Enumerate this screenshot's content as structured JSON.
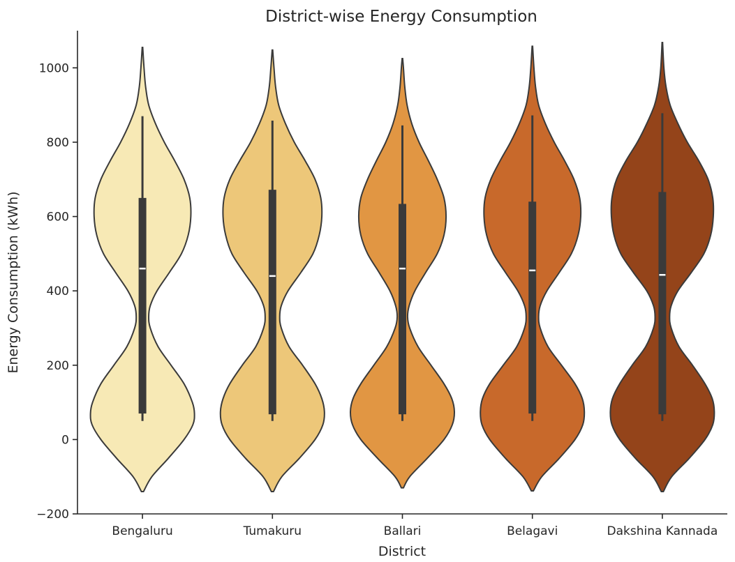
{
  "chart_data": {
    "type": "violin",
    "title": "District-wise Energy Consumption",
    "xlabel": "District",
    "ylabel": "Energy Consumption (kWh)",
    "ylim": [
      -200,
      1100
    ],
    "yticks": [
      -200,
      0,
      200,
      400,
      600,
      800,
      1000
    ],
    "ytick_labels": [
      "−200",
      "0",
      "200",
      "400",
      "600",
      "800",
      "1000"
    ],
    "grid": false,
    "categories": [
      "Bengaluru",
      "Tumakuru",
      "Ballari",
      "Belagavi",
      "Dakshina Kannada"
    ],
    "colors": [
      "#f7e9b5",
      "#edc779",
      "#e19643",
      "#c8692b",
      "#94441a"
    ],
    "series": [
      {
        "category": "Bengaluru",
        "min": 50,
        "q1": 70,
        "median": 460,
        "q3": 650,
        "max": 870,
        "kde_range": [
          -140,
          1055
        ],
        "density": [
          [
            -140,
            0.02
          ],
          [
            -100,
            0.18
          ],
          [
            -50,
            0.5
          ],
          [
            0,
            0.8
          ],
          [
            40,
            0.97
          ],
          [
            70,
            1.0
          ],
          [
            100,
            0.96
          ],
          [
            150,
            0.8
          ],
          [
            200,
            0.55
          ],
          [
            250,
            0.3
          ],
          [
            300,
            0.15
          ],
          [
            330,
            0.12
          ],
          [
            360,
            0.15
          ],
          [
            400,
            0.28
          ],
          [
            450,
            0.52
          ],
          [
            500,
            0.75
          ],
          [
            550,
            0.88
          ],
          [
            600,
            0.93
          ],
          [
            650,
            0.91
          ],
          [
            700,
            0.8
          ],
          [
            750,
            0.62
          ],
          [
            800,
            0.42
          ],
          [
            850,
            0.25
          ],
          [
            900,
            0.12
          ],
          [
            950,
            0.06
          ],
          [
            1000,
            0.03
          ],
          [
            1055,
            0.005
          ]
        ]
      },
      {
        "category": "Tumakuru",
        "min": 50,
        "q1": 68,
        "median": 440,
        "q3": 672,
        "max": 858,
        "kde_range": [
          -140,
          1048
        ],
        "density": [
          [
            -140,
            0.02
          ],
          [
            -100,
            0.18
          ],
          [
            -50,
            0.52
          ],
          [
            0,
            0.82
          ],
          [
            40,
            0.97
          ],
          [
            75,
            1.0
          ],
          [
            110,
            0.95
          ],
          [
            150,
            0.82
          ],
          [
            200,
            0.58
          ],
          [
            250,
            0.32
          ],
          [
            300,
            0.17
          ],
          [
            330,
            0.14
          ],
          [
            360,
            0.17
          ],
          [
            400,
            0.3
          ],
          [
            450,
            0.55
          ],
          [
            500,
            0.78
          ],
          [
            550,
            0.9
          ],
          [
            600,
            0.95
          ],
          [
            650,
            0.93
          ],
          [
            700,
            0.82
          ],
          [
            750,
            0.63
          ],
          [
            800,
            0.42
          ],
          [
            850,
            0.25
          ],
          [
            900,
            0.12
          ],
          [
            950,
            0.06
          ],
          [
            1000,
            0.03
          ],
          [
            1048,
            0.005
          ]
        ]
      },
      {
        "category": "Ballari",
        "min": 50,
        "q1": 68,
        "median": 460,
        "q3": 634,
        "max": 845,
        "kde_range": [
          -130,
          1025
        ],
        "density": [
          [
            -130,
            0.02
          ],
          [
            -100,
            0.14
          ],
          [
            -50,
            0.48
          ],
          [
            0,
            0.8
          ],
          [
            40,
            0.96
          ],
          [
            75,
            1.0
          ],
          [
            110,
            0.95
          ],
          [
            150,
            0.8
          ],
          [
            200,
            0.55
          ],
          [
            250,
            0.3
          ],
          [
            300,
            0.14
          ],
          [
            330,
            0.1
          ],
          [
            360,
            0.13
          ],
          [
            400,
            0.24
          ],
          [
            450,
            0.45
          ],
          [
            500,
            0.67
          ],
          [
            550,
            0.8
          ],
          [
            600,
            0.84
          ],
          [
            650,
            0.8
          ],
          [
            700,
            0.67
          ],
          [
            750,
            0.5
          ],
          [
            800,
            0.32
          ],
          [
            850,
            0.18
          ],
          [
            900,
            0.09
          ],
          [
            950,
            0.045
          ],
          [
            1000,
            0.02
          ],
          [
            1025,
            0.005
          ]
        ]
      },
      {
        "category": "Belagavi",
        "min": 50,
        "q1": 70,
        "median": 455,
        "q3": 640,
        "max": 872,
        "kde_range": [
          -138,
          1058
        ],
        "density": [
          [
            -138,
            0.02
          ],
          [
            -100,
            0.18
          ],
          [
            -50,
            0.52
          ],
          [
            0,
            0.82
          ],
          [
            40,
            0.97
          ],
          [
            75,
            1.0
          ],
          [
            110,
            0.96
          ],
          [
            150,
            0.82
          ],
          [
            200,
            0.56
          ],
          [
            250,
            0.3
          ],
          [
            300,
            0.15
          ],
          [
            330,
            0.12
          ],
          [
            360,
            0.15
          ],
          [
            400,
            0.28
          ],
          [
            450,
            0.52
          ],
          [
            500,
            0.75
          ],
          [
            550,
            0.88
          ],
          [
            600,
            0.93
          ],
          [
            650,
            0.91
          ],
          [
            700,
            0.8
          ],
          [
            750,
            0.62
          ],
          [
            800,
            0.42
          ],
          [
            850,
            0.25
          ],
          [
            900,
            0.12
          ],
          [
            950,
            0.06
          ],
          [
            1000,
            0.03
          ],
          [
            1058,
            0.005
          ]
        ]
      },
      {
        "category": "Dakshina Kannada",
        "min": 50,
        "q1": 68,
        "median": 443,
        "q3": 666,
        "max": 878,
        "kde_range": [
          -140,
          1068
        ],
        "density": [
          [
            -140,
            0.02
          ],
          [
            -100,
            0.18
          ],
          [
            -50,
            0.52
          ],
          [
            0,
            0.82
          ],
          [
            40,
            0.97
          ],
          [
            75,
            1.0
          ],
          [
            110,
            0.96
          ],
          [
            150,
            0.82
          ],
          [
            200,
            0.58
          ],
          [
            250,
            0.32
          ],
          [
            300,
            0.17
          ],
          [
            330,
            0.14
          ],
          [
            360,
            0.17
          ],
          [
            400,
            0.3
          ],
          [
            450,
            0.56
          ],
          [
            500,
            0.8
          ],
          [
            550,
            0.93
          ],
          [
            600,
            0.98
          ],
          [
            650,
            0.97
          ],
          [
            700,
            0.88
          ],
          [
            750,
            0.7
          ],
          [
            800,
            0.48
          ],
          [
            850,
            0.3
          ],
          [
            900,
            0.15
          ],
          [
            950,
            0.07
          ],
          [
            1000,
            0.03
          ],
          [
            1068,
            0.005
          ]
        ]
      }
    ]
  }
}
